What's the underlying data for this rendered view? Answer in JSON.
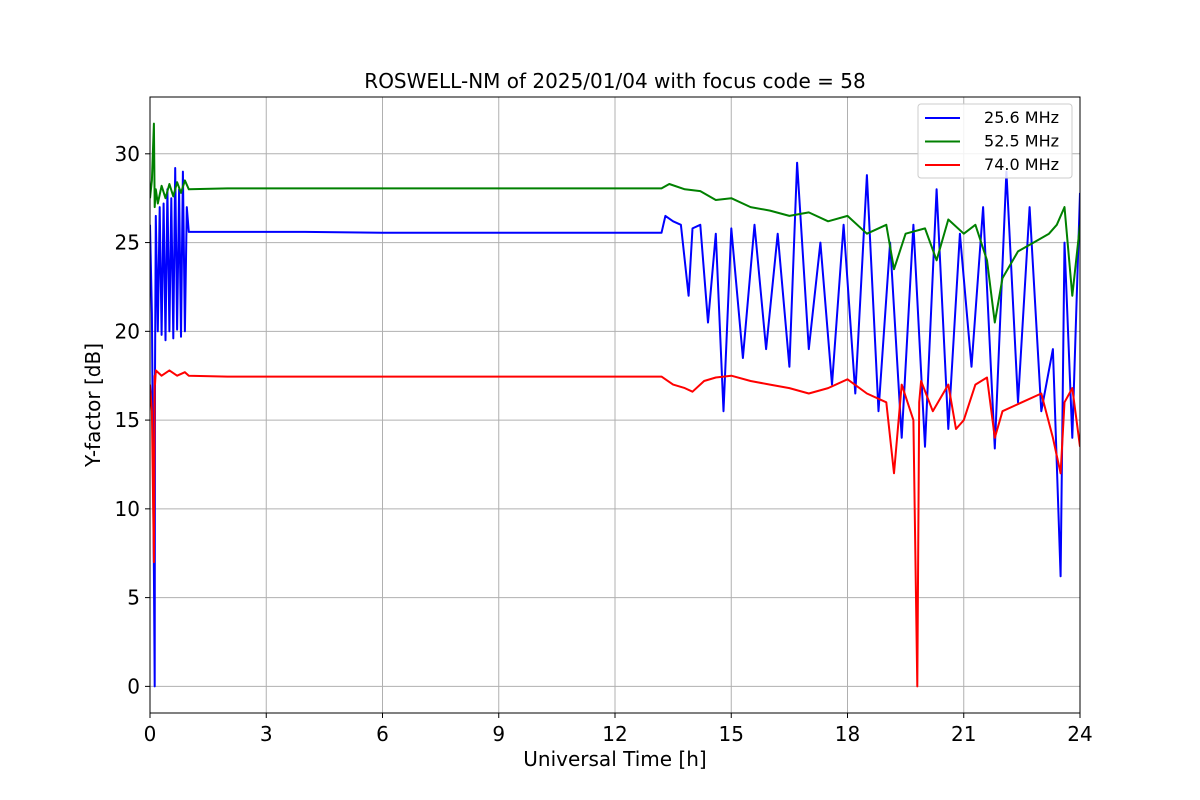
{
  "chart_data": {
    "type": "line",
    "title": "ROSWELL-NM of 2025/01/04 with focus code = 58",
    "xlabel": "Universal Time [h]",
    "ylabel": "Y-factor [dB]",
    "xlim": [
      0,
      24
    ],
    "ylim": [
      -1.5,
      33.2
    ],
    "xticks": [
      0,
      3,
      6,
      9,
      12,
      15,
      18,
      21,
      24
    ],
    "yticks": [
      0,
      5,
      10,
      15,
      20,
      25,
      30
    ],
    "grid": true,
    "legend_position": "top-right",
    "series": [
      {
        "name": "25.6 MHz",
        "color": "#0000ff",
        "x": [
          0.0,
          0.05,
          0.1,
          0.12,
          0.13,
          0.15,
          0.2,
          0.25,
          0.3,
          0.35,
          0.4,
          0.45,
          0.5,
          0.55,
          0.6,
          0.65,
          0.7,
          0.75,
          0.8,
          0.85,
          0.9,
          0.95,
          1.0,
          2.0,
          4.0,
          6.0,
          8.0,
          10.0,
          12.0,
          13.2,
          13.3,
          13.5,
          13.7,
          13.9,
          14.0,
          14.2,
          14.4,
          14.6,
          14.8,
          15.0,
          15.3,
          15.6,
          15.9,
          16.2,
          16.5,
          16.7,
          17.0,
          17.3,
          17.6,
          17.9,
          18.2,
          18.5,
          18.8,
          19.1,
          19.4,
          19.7,
          20.0,
          20.3,
          20.6,
          20.9,
          21.2,
          21.5,
          21.8,
          22.1,
          22.4,
          22.7,
          23.0,
          23.3,
          23.5,
          23.6,
          23.8,
          24.0
        ],
        "values": [
          26.0,
          21.0,
          6.5,
          0.0,
          17.5,
          26.5,
          20.0,
          27.0,
          19.8,
          27.2,
          19.5,
          28.0,
          20.0,
          27.5,
          19.6,
          29.2,
          20.1,
          28.0,
          19.7,
          29.0,
          20.0,
          27.0,
          25.6,
          25.6,
          25.6,
          25.55,
          25.55,
          25.55,
          25.55,
          25.55,
          26.5,
          26.2,
          26.0,
          22.0,
          25.8,
          26.0,
          20.5,
          25.5,
          15.5,
          25.8,
          18.5,
          26.0,
          19.0,
          25.5,
          18.0,
          29.5,
          19.0,
          25.0,
          17.0,
          26.0,
          16.5,
          28.8,
          15.5,
          25.0,
          14.0,
          26.0,
          13.5,
          28.0,
          14.5,
          25.5,
          18.0,
          27.0,
          13.4,
          29.0,
          16.0,
          27.0,
          15.5,
          19.0,
          6.2,
          25.0,
          14.0,
          27.8
        ]
      },
      {
        "name": "52.5 MHz",
        "color": "#008000",
        "x": [
          0.0,
          0.05,
          0.1,
          0.12,
          0.15,
          0.2,
          0.3,
          0.4,
          0.5,
          0.6,
          0.7,
          0.8,
          0.9,
          1.0,
          2.0,
          4.0,
          6.0,
          8.0,
          10.0,
          12.0,
          13.2,
          13.4,
          13.8,
          14.2,
          14.6,
          15.0,
          15.5,
          16.0,
          16.5,
          17.0,
          17.5,
          18.0,
          18.5,
          19.0,
          19.2,
          19.5,
          20.0,
          20.3,
          20.6,
          21.0,
          21.3,
          21.6,
          21.8,
          22.0,
          22.4,
          22.8,
          23.2,
          23.4,
          23.6,
          23.8,
          24.0
        ],
        "values": [
          27.5,
          28.5,
          31.7,
          27.0,
          28.0,
          27.2,
          28.2,
          27.5,
          28.3,
          27.6,
          28.4,
          27.8,
          28.5,
          28.0,
          28.05,
          28.05,
          28.05,
          28.05,
          28.05,
          28.05,
          28.05,
          28.3,
          28.0,
          27.9,
          27.4,
          27.5,
          27.0,
          26.8,
          26.5,
          26.7,
          26.2,
          26.5,
          25.5,
          26.0,
          23.5,
          25.5,
          25.8,
          24.0,
          26.3,
          25.5,
          26.0,
          24.0,
          20.5,
          23.0,
          24.5,
          25.0,
          25.5,
          26.0,
          27.0,
          22.0,
          26.0
        ]
      },
      {
        "name": "74.0 MHz",
        "color": "#ff0000",
        "x": [
          0.0,
          0.05,
          0.1,
          0.12,
          0.13,
          0.15,
          0.3,
          0.5,
          0.7,
          0.9,
          1.0,
          2.0,
          4.0,
          6.0,
          8.0,
          10.0,
          12.0,
          13.2,
          13.5,
          13.8,
          14.0,
          14.3,
          14.6,
          15.0,
          15.5,
          16.0,
          16.5,
          17.0,
          17.5,
          18.0,
          18.5,
          19.0,
          19.2,
          19.4,
          19.7,
          19.8,
          19.85,
          19.9,
          20.2,
          20.6,
          20.8,
          21.0,
          21.3,
          21.6,
          21.8,
          22.0,
          22.5,
          23.0,
          23.3,
          23.5,
          23.6,
          23.8,
          24.0
        ],
        "values": [
          17.0,
          15.5,
          7.0,
          17.5,
          17.0,
          17.8,
          17.5,
          17.8,
          17.5,
          17.7,
          17.5,
          17.45,
          17.45,
          17.45,
          17.45,
          17.45,
          17.45,
          17.45,
          17.0,
          16.8,
          16.6,
          17.2,
          17.4,
          17.5,
          17.2,
          17.0,
          16.8,
          16.5,
          16.8,
          17.3,
          16.5,
          16.0,
          12.0,
          17.0,
          15.0,
          0.0,
          16.0,
          17.2,
          15.5,
          17.0,
          14.5,
          15.0,
          17.0,
          17.4,
          14.0,
          15.5,
          16.0,
          16.5,
          14.0,
          12.0,
          16.0,
          16.8,
          13.5
        ]
      }
    ]
  }
}
